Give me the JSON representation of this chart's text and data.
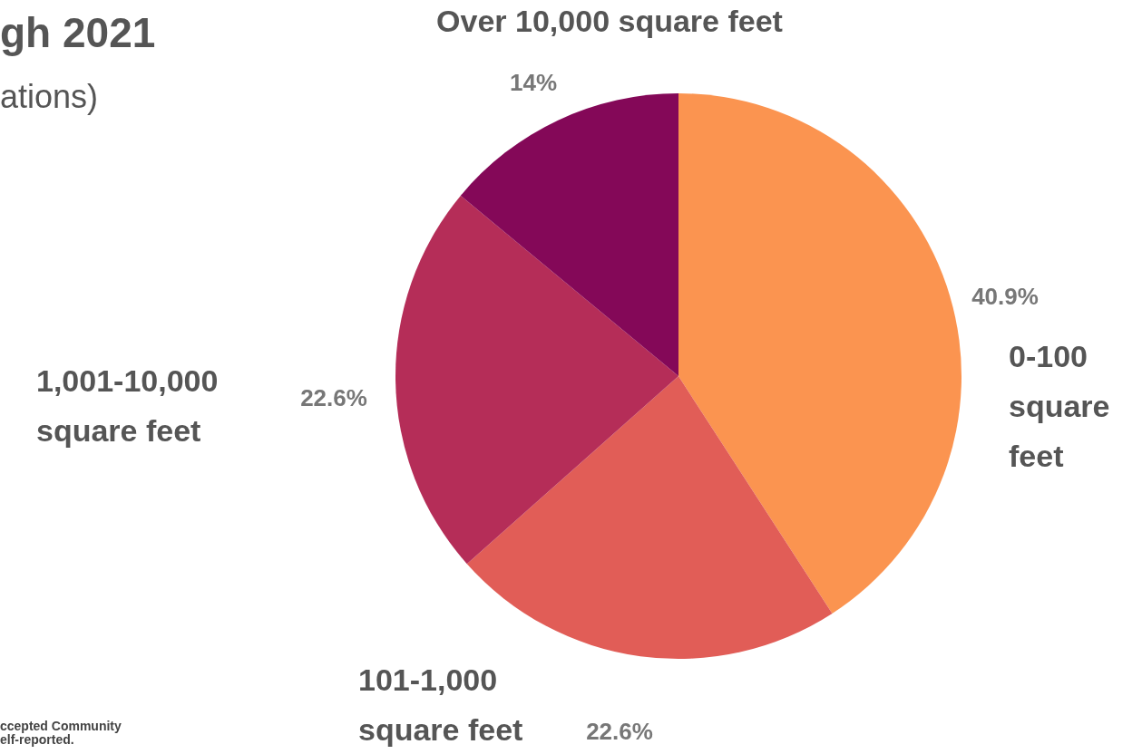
{
  "chart_data": {
    "type": "pie",
    "title": "gh 2021",
    "subtitle": "ations)",
    "categories": [
      "0-100 square feet",
      "101-1,000 square feet",
      "1,001-10,000 square feet",
      "Over 10,000 square feet"
    ],
    "values": [
      40.9,
      22.6,
      22.6,
      14
    ],
    "value_labels": [
      "40.9%",
      "22.6%",
      "22.6%",
      "14%"
    ],
    "colors": [
      "#fb9450",
      "#e15d57",
      "#b52d58",
      "#840858"
    ],
    "annotations": [
      "ccepted Community",
      "elf-reported."
    ]
  }
}
